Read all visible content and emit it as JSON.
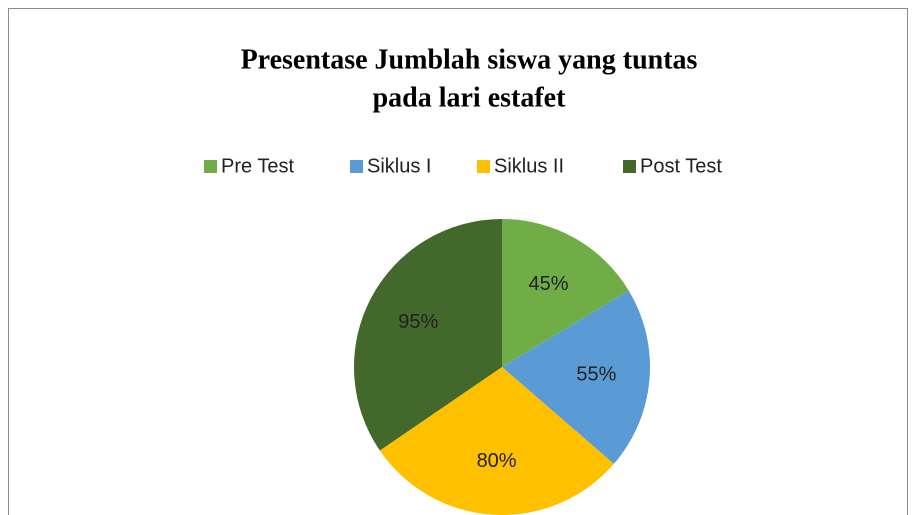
{
  "chart_data": {
    "type": "pie",
    "title": [
      "Presentase Jumblah siswa yang tuntas",
      "pada lari estafet"
    ],
    "categories": [
      "Pre Test",
      "Siklus I",
      "Siklus II",
      "Post Test"
    ],
    "values": [
      45,
      55,
      80,
      95
    ],
    "value_labels": [
      "45%",
      "55%",
      "80%",
      "95%"
    ],
    "colors": [
      "#70ad47",
      "#5b9bd5",
      "#ffc000",
      "#43682b"
    ],
    "legend": "top"
  }
}
